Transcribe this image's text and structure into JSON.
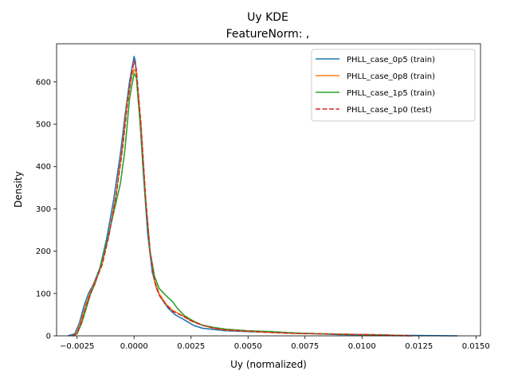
{
  "chart_data": {
    "type": "line",
    "title": "Uy KDE",
    "subtitle": "FeatureNorm: ,",
    "xlabel": "Uy (normalized)",
    "ylabel": "Density",
    "xlim": [
      -0.0034,
      0.0152
    ],
    "ylim": [
      0,
      690
    ],
    "x_ticks": [
      -0.0025,
      0.0,
      0.0025,
      0.005,
      0.0075,
      0.01,
      0.0125,
      0.015
    ],
    "x_tick_labels": [
      "−0.0025",
      "0.0000",
      "0.0025",
      "0.0050",
      "0.0075",
      "0.0100",
      "0.0125",
      "0.0150"
    ],
    "y_ticks": [
      0,
      100,
      200,
      300,
      400,
      500,
      600
    ],
    "y_tick_labels": [
      "0",
      "100",
      "200",
      "300",
      "400",
      "500",
      "600"
    ],
    "grid": false,
    "legend_position": "top-right",
    "series": [
      {
        "name": "PHLL_case_0p5 (train)",
        "color": "#1f77b4",
        "style": "solid",
        "points": [
          [
            -0.0029,
            0
          ],
          [
            -0.0026,
            5
          ],
          [
            -0.0024,
            30
          ],
          [
            -0.0022,
            70
          ],
          [
            -0.002,
            100
          ],
          [
            -0.0018,
            120
          ],
          [
            -0.0015,
            160
          ],
          [
            -0.0012,
            230
          ],
          [
            -0.0009,
            320
          ],
          [
            -0.0006,
            430
          ],
          [
            -0.0004,
            520
          ],
          [
            -0.0002,
            600
          ],
          [
            -5e-05,
            645
          ],
          [
            0.0,
            660
          ],
          [
            5e-05,
            650
          ],
          [
            0.0002,
            560
          ],
          [
            0.0004,
            390
          ],
          [
            0.0006,
            240
          ],
          [
            0.0008,
            150
          ],
          [
            0.001,
            110
          ],
          [
            0.0012,
            88
          ],
          [
            0.0015,
            65
          ],
          [
            0.0018,
            50
          ],
          [
            0.0022,
            38
          ],
          [
            0.0026,
            25
          ],
          [
            0.003,
            18
          ],
          [
            0.004,
            12
          ],
          [
            0.005,
            10
          ],
          [
            0.006,
            8
          ],
          [
            0.007,
            6
          ],
          [
            0.008,
            5
          ],
          [
            0.009,
            3
          ],
          [
            0.01,
            2
          ],
          [
            0.011,
            1
          ],
          [
            0.012,
            1
          ],
          [
            0.0142,
            0
          ]
        ]
      },
      {
        "name": "PHLL_case_0p8 (train)",
        "color": "#ff7f0e",
        "style": "solid",
        "points": [
          [
            -0.0027,
            0
          ],
          [
            -0.0025,
            8
          ],
          [
            -0.0023,
            40
          ],
          [
            -0.0021,
            75
          ],
          [
            -0.0019,
            105
          ],
          [
            -0.0017,
            130
          ],
          [
            -0.0014,
            170
          ],
          [
            -0.0011,
            240
          ],
          [
            -0.0008,
            330
          ],
          [
            -0.0005,
            450
          ],
          [
            -0.0003,
            550
          ],
          [
            -0.0001,
            615
          ],
          [
            0.0,
            630
          ],
          [
            0.0001,
            620
          ],
          [
            0.0003,
            500
          ],
          [
            0.0005,
            330
          ],
          [
            0.0007,
            200
          ],
          [
            0.0009,
            130
          ],
          [
            0.0011,
            100
          ],
          [
            0.0014,
            75
          ],
          [
            0.0017,
            60
          ],
          [
            0.0021,
            48
          ],
          [
            0.0025,
            35
          ],
          [
            0.003,
            25
          ],
          [
            0.0035,
            18
          ],
          [
            0.004,
            14
          ],
          [
            0.005,
            11
          ],
          [
            0.006,
            8
          ],
          [
            0.007,
            6
          ],
          [
            0.008,
            5
          ],
          [
            0.009,
            4
          ],
          [
            0.01,
            3
          ],
          [
            0.011,
            2
          ],
          [
            0.0122,
            0
          ]
        ]
      },
      {
        "name": "PHLL_case_1p5 (train)",
        "color": "#2ca02c",
        "style": "solid",
        "points": [
          [
            -0.0027,
            0
          ],
          [
            -0.0025,
            5
          ],
          [
            -0.0023,
            30
          ],
          [
            -0.0021,
            65
          ],
          [
            -0.0019,
            100
          ],
          [
            -0.0017,
            125
          ],
          [
            -0.0015,
            160
          ],
          [
            -0.0012,
            220
          ],
          [
            -0.0009,
            290
          ],
          [
            -0.0006,
            360
          ],
          [
            -0.0004,
            440
          ],
          [
            -0.0002,
            560
          ],
          [
            0.0,
            620
          ],
          [
            0.0001,
            610
          ],
          [
            0.0003,
            480
          ],
          [
            0.0005,
            320
          ],
          [
            0.0007,
            200
          ],
          [
            0.0009,
            140
          ],
          [
            0.0011,
            112
          ],
          [
            0.0014,
            95
          ],
          [
            0.0017,
            80
          ],
          [
            0.0019,
            65
          ],
          [
            0.0022,
            48
          ],
          [
            0.0026,
            35
          ],
          [
            0.003,
            25
          ],
          [
            0.0035,
            20
          ],
          [
            0.004,
            16
          ],
          [
            0.005,
            12
          ],
          [
            0.006,
            10
          ],
          [
            0.007,
            7
          ],
          [
            0.008,
            5
          ],
          [
            0.009,
            4
          ],
          [
            0.01,
            3
          ],
          [
            0.011,
            2
          ],
          [
            0.0118,
            0
          ]
        ]
      },
      {
        "name": "PHLL_case_1p0 (test)",
        "color": "#d62728",
        "style": "dashed",
        "points": [
          [
            -0.0027,
            0
          ],
          [
            -0.0025,
            6
          ],
          [
            -0.0023,
            35
          ],
          [
            -0.0021,
            72
          ],
          [
            -0.0019,
            102
          ],
          [
            -0.0017,
            128
          ],
          [
            -0.0014,
            168
          ],
          [
            -0.0011,
            238
          ],
          [
            -0.0008,
            328
          ],
          [
            -0.0005,
            445
          ],
          [
            -0.0003,
            545
          ],
          [
            -0.0001,
            620
          ],
          [
            0.0,
            650
          ],
          [
            0.0001,
            630
          ],
          [
            0.0003,
            500
          ],
          [
            0.0005,
            330
          ],
          [
            0.0007,
            200
          ],
          [
            0.0009,
            128
          ],
          [
            0.0011,
            96
          ],
          [
            0.0014,
            74
          ],
          [
            0.0017,
            58
          ],
          [
            0.0021,
            48
          ],
          [
            0.0025,
            36
          ],
          [
            0.003,
            25
          ],
          [
            0.0035,
            18
          ],
          [
            0.004,
            14
          ],
          [
            0.005,
            11
          ],
          [
            0.006,
            8
          ],
          [
            0.007,
            6
          ],
          [
            0.008,
            5
          ],
          [
            0.009,
            4
          ],
          [
            0.01,
            3
          ],
          [
            0.011,
            2
          ],
          [
            0.0122,
            0
          ]
        ]
      }
    ]
  }
}
